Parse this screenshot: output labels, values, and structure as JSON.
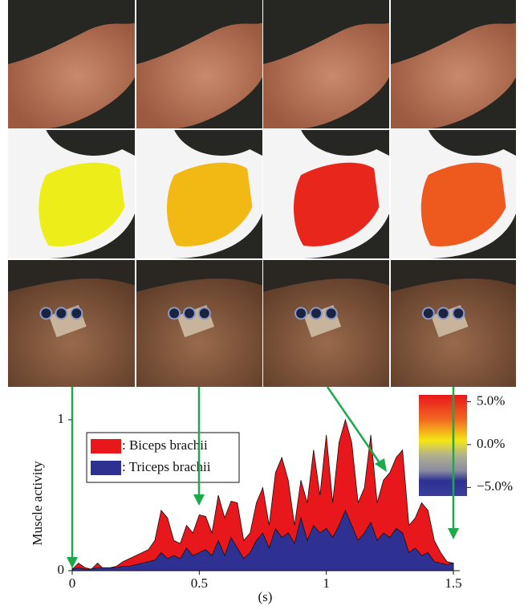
{
  "chart_data": {
    "type": "area",
    "y_label": "Muscle activity",
    "x_label": "(s)",
    "x": [
      0,
      0.025,
      0.05,
      0.075,
      0.1,
      0.125,
      0.15,
      0.175,
      0.2,
      0.225,
      0.25,
      0.275,
      0.3,
      0.325,
      0.35,
      0.375,
      0.4,
      0.425,
      0.45,
      0.475,
      0.5,
      0.525,
      0.55,
      0.575,
      0.6,
      0.625,
      0.65,
      0.675,
      0.7,
      0.725,
      0.75,
      0.775,
      0.8,
      0.825,
      0.85,
      0.875,
      0.9,
      0.925,
      0.95,
      0.975,
      1,
      1.025,
      1.05,
      1.075,
      1.1,
      1.125,
      1.15,
      1.175,
      1.2,
      1.225,
      1.25,
      1.275,
      1.3,
      1.325,
      1.35,
      1.375,
      1.4,
      1.425,
      1.45,
      1.475,
      1.5
    ],
    "series": [
      {
        "name": ": Biceps brachii",
        "color": "#e8171c",
        "values": [
          0.01,
          0.05,
          0.02,
          0.01,
          0.05,
          0.01,
          0.02,
          0.03,
          0.06,
          0.08,
          0.1,
          0.12,
          0.14,
          0.2,
          0.4,
          0.35,
          0.2,
          0.18,
          0.3,
          0.25,
          0.37,
          0.36,
          0.25,
          0.5,
          0.35,
          0.46,
          0.45,
          0.2,
          0.25,
          0.45,
          0.55,
          0.3,
          0.65,
          0.75,
          0.6,
          0.3,
          0.6,
          0.45,
          0.8,
          0.5,
          0.9,
          0.45,
          0.85,
          1.0,
          0.85,
          0.45,
          0.55,
          0.9,
          0.45,
          0.6,
          0.65,
          0.75,
          0.8,
          0.3,
          0.35,
          0.45,
          0.4,
          0.2,
          0.12,
          0.06,
          0.05
        ]
      },
      {
        "name": ": Triceps brachii",
        "color": "#2e3192",
        "values": [
          0.01,
          0.02,
          0.01,
          0.01,
          0.02,
          0.02,
          0.02,
          0.02,
          0.03,
          0.03,
          0.04,
          0.05,
          0.06,
          0.07,
          0.12,
          0.08,
          0.1,
          0.08,
          0.15,
          0.1,
          0.12,
          0.14,
          0.1,
          0.2,
          0.1,
          0.22,
          0.15,
          0.08,
          0.12,
          0.2,
          0.25,
          0.15,
          0.28,
          0.22,
          0.25,
          0.18,
          0.35,
          0.2,
          0.3,
          0.25,
          0.28,
          0.22,
          0.3,
          0.4,
          0.3,
          0.2,
          0.25,
          0.32,
          0.2,
          0.25,
          0.22,
          0.28,
          0.25,
          0.12,
          0.15,
          0.1,
          0.12,
          0.06,
          0.05,
          0.04,
          0.05
        ]
      }
    ],
    "xlim": [
      0,
      1.5
    ],
    "ylim": [
      0,
      1
    ],
    "xticks": [
      0,
      0.5,
      1,
      1.5
    ],
    "yticks": [
      0,
      1
    ],
    "colorbar": {
      "lim": [
        -6,
        5.8
      ],
      "ticks": [
        {
          "value": 5,
          "label": "5.0%"
        },
        {
          "value": 0,
          "label": "0.0%"
        },
        {
          "value": -5,
          "label": "−5.0%"
        }
      ]
    }
  }
}
